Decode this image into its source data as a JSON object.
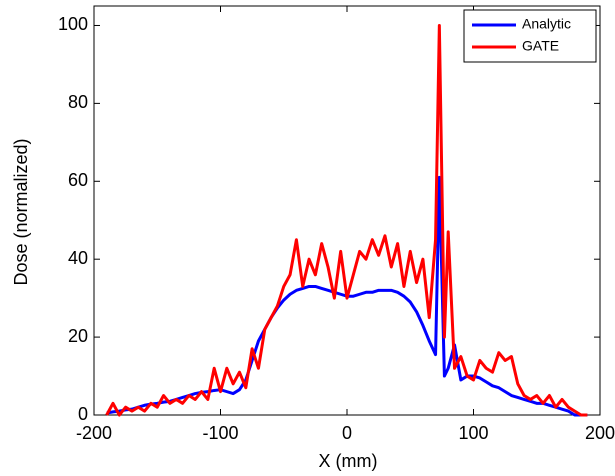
{
  "chart_data": {
    "type": "line",
    "xlabel": "X (mm)",
    "ylabel": "Dose (normalized)",
    "x": [
      -190,
      -185,
      -180,
      -175,
      -170,
      -165,
      -160,
      -155,
      -150,
      -145,
      -140,
      -135,
      -130,
      -125,
      -120,
      -115,
      -110,
      -105,
      -100,
      -95,
      -90,
      -85,
      -80,
      -75,
      -70,
      -65,
      -60,
      -55,
      -50,
      -45,
      -40,
      -35,
      -30,
      -25,
      -20,
      -15,
      -10,
      -5,
      0,
      5,
      10,
      15,
      20,
      25,
      30,
      35,
      40,
      45,
      50,
      55,
      60,
      65,
      70,
      73,
      77,
      80,
      85,
      90,
      95,
      100,
      105,
      110,
      115,
      120,
      125,
      130,
      135,
      140,
      145,
      150,
      155,
      160,
      165,
      170,
      175,
      180,
      185,
      190
    ],
    "series": [
      {
        "name": "Analytic",
        "color": "#0000ff",
        "values": [
          0.5,
          0.8,
          1,
          1.3,
          1.5,
          2,
          2.5,
          2.8,
          3,
          3.3,
          3.5,
          4,
          4.5,
          5,
          5.5,
          5.8,
          6,
          6.3,
          6.5,
          6,
          5.5,
          6.5,
          9,
          14,
          19,
          22,
          25,
          27.5,
          29.5,
          31,
          32,
          32.5,
          33,
          33,
          32.5,
          32,
          31.5,
          31,
          30.5,
          30.5,
          31,
          31.5,
          31.5,
          32,
          32,
          32,
          31.5,
          30.5,
          29,
          26.5,
          23,
          19,
          15.5,
          61,
          10,
          12,
          18,
          9,
          10,
          10,
          9.5,
          8.5,
          7.5,
          7,
          6,
          5,
          4.5,
          4,
          3.5,
          3,
          3,
          2.5,
          2,
          1.5,
          1,
          0,
          0,
          0
        ]
      },
      {
        "name": "GATE",
        "color": "#ff0000",
        "values": [
          0,
          3,
          0,
          2,
          1,
          2,
          1,
          3,
          2,
          5,
          3,
          4,
          3,
          5,
          4,
          6,
          4,
          12,
          6,
          12,
          8,
          11,
          7,
          17,
          12,
          22,
          25,
          28,
          33,
          36,
          45,
          33,
          40,
          36,
          44,
          38,
          30,
          42,
          30,
          36,
          42,
          40,
          45,
          41,
          46,
          38,
          44,
          33,
          42,
          34,
          40,
          25,
          45,
          100,
          20,
          47,
          12,
          15,
          10,
          9,
          14,
          12,
          11,
          16,
          14,
          15,
          8,
          5,
          4,
          5,
          3,
          5,
          2,
          4,
          2,
          1,
          0,
          0
        ]
      }
    ],
    "xlim": [
      -200,
      200
    ],
    "xticks": [
      -200,
      -100,
      0,
      100,
      200
    ],
    "ylim": [
      0,
      105
    ],
    "yticks": [
      0,
      20,
      40,
      60,
      80,
      100
    ],
    "legend": "upper right"
  }
}
